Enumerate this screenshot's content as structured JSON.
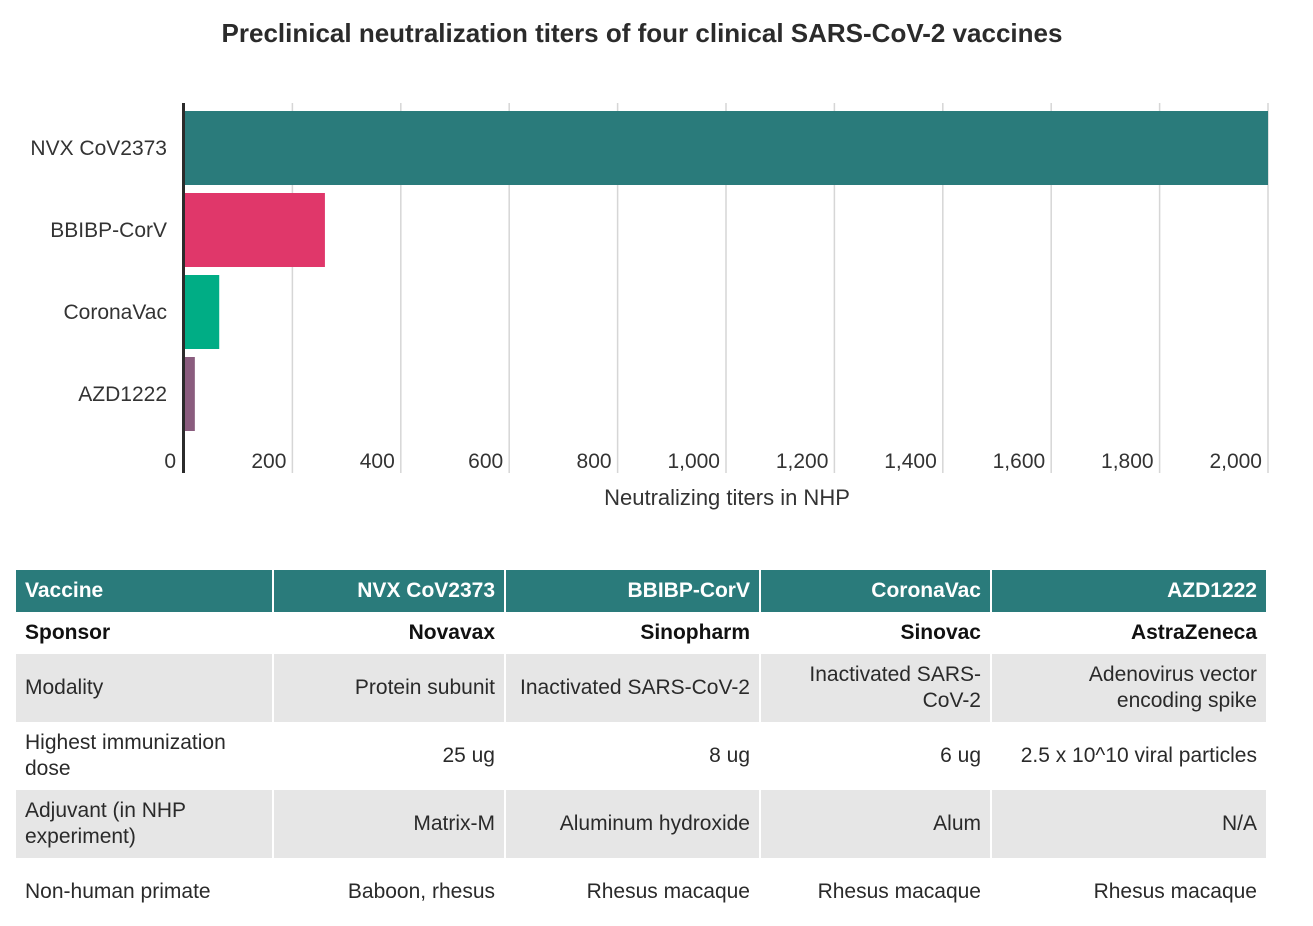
{
  "chart_data": {
    "type": "bar",
    "orientation": "horizontal",
    "title": "Preclinical neutralization titers of four clinical SARS-CoV-2 vaccines",
    "xlabel": "Neutralizing titers in NHP",
    "ylabel": "",
    "xlim": [
      0,
      2000
    ],
    "ticks": [
      0,
      200,
      400,
      600,
      800,
      1000,
      1200,
      1400,
      1600,
      1800,
      2000
    ],
    "tick_labels": [
      "0",
      "200",
      "400",
      "600",
      "800",
      "1,000",
      "1,200",
      "1,400",
      "1,600",
      "1,800",
      "2,000"
    ],
    "grid": true,
    "categories": [
      "NVX CoV2373",
      "BBIBP-CorV",
      "CoronaVac",
      "AZD1222"
    ],
    "values": [
      2000,
      260,
      65,
      20
    ],
    "colors": [
      "#2a7b7b",
      "#e0376a",
      "#00ad85",
      "#8a5c7e"
    ]
  },
  "table": {
    "header": [
      "Vaccine",
      "NVX CoV2373",
      "BBIBP-CorV",
      "CoronaVac",
      "AZD1222"
    ],
    "rows": [
      {
        "style": "bold",
        "cells": [
          "Sponsor",
          "Novavax",
          "Sinopharm",
          "Sinovac",
          "AstraZeneca"
        ]
      },
      {
        "style": "shade",
        "cells": [
          "Modality",
          "Protein subunit",
          "Inactivated SARS-CoV-2",
          "Inactivated SARS-CoV-2",
          "Adenovirus vector encoding spike"
        ]
      },
      {
        "style": "plain",
        "cells": [
          "Highest immunization dose",
          "25 ug",
          "8 ug",
          "6 ug",
          "2.5 x 10^10 viral particles"
        ]
      },
      {
        "style": "shade",
        "cells": [
          "Adjuvant (in NHP experiment)",
          "Matrix-M",
          "Aluminum hydroxide",
          "Alum",
          "N/A"
        ]
      },
      {
        "style": "plain",
        "cells": [
          "Non-human primate",
          "Baboon, rhesus",
          "Rhesus macaque",
          "Rhesus macaque",
          "Rhesus macaque"
        ]
      }
    ]
  }
}
